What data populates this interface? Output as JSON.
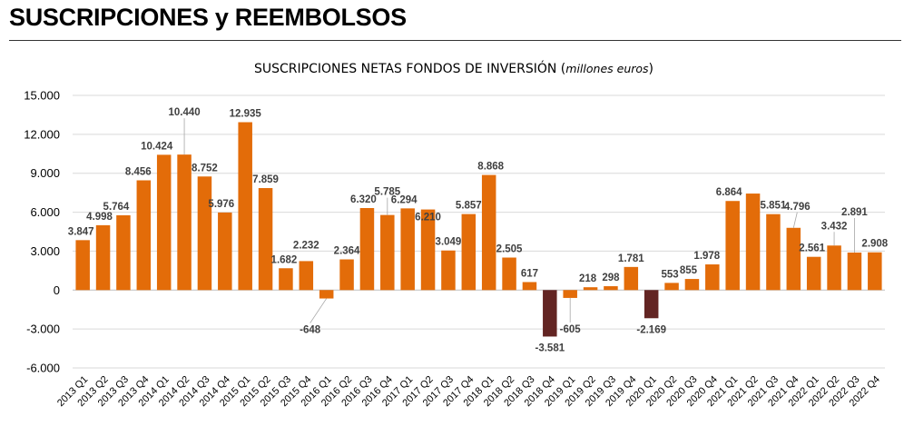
{
  "page": {
    "heading": "SUSCRIPCIONES y REEMBOLSOS"
  },
  "chart_data": {
    "type": "bar",
    "title_main": "SUSCRIPCIONES NETAS FONDOS DE INVERSIÓN (",
    "title_unit": "millones euros",
    "title_close": ")",
    "ylim": [
      -6000,
      15000
    ],
    "yticks": [
      15000,
      12000,
      9000,
      6000,
      3000,
      0,
      -3000,
      -6000
    ],
    "ytick_labels": [
      "15.000",
      "12.000",
      "9.000",
      "6.000",
      "3.000",
      "0",
      "-3.000",
      "-6.000"
    ],
    "grid": true,
    "categories": [
      "2013 Q1",
      "2013 Q2",
      "2013 Q3",
      "2013 Q4",
      "2014 Q1",
      "2014 Q2",
      "2014 Q3",
      "2014 Q4",
      "2015 Q1",
      "2015 Q2",
      "2015 Q3",
      "2015 Q4",
      "2016 Q1",
      "2016 Q2",
      "2016 Q3",
      "2016 Q4",
      "2017 Q1",
      "2017 Q2",
      "2017 Q3",
      "2017 Q4",
      "2018 Q1",
      "2018 Q2",
      "2018 Q3",
      "2018 Q4",
      "2019 Q1",
      "2019 Q2",
      "2019 Q3",
      "2019 Q4",
      "2020 Q1",
      "2020 Q2",
      "2020 Q3",
      "2020 Q4",
      "2021 Q1",
      "2021 Q2",
      "2021 Q3",
      "2021 Q4",
      "2022 Q1",
      "2022 Q2",
      "2022 Q3",
      "2022 Q4"
    ],
    "values": [
      3847,
      4998,
      5764,
      8456,
      10424,
      10440,
      8752,
      5976,
      12935,
      7859,
      1682,
      2232,
      -648,
      2364,
      6320,
      5785,
      6294,
      6210,
      3049,
      5857,
      8868,
      2505,
      617,
      -3581,
      -605,
      218,
      298,
      1781,
      -2169,
      553,
      855,
      1978,
      6864,
      7436,
      5851,
      4796,
      2561,
      3432,
      2891,
      2908
    ],
    "labels": [
      "3.847",
      "4.998",
      "5.764",
      "8.456",
      "10.424",
      "10.440",
      "8.752",
      "5.976",
      "12.935",
      "7.859",
      "1.682",
      "2.232",
      "-648",
      "2.364",
      "6.320",
      "5.785",
      "6.294",
      "6.210",
      "3.049",
      "5.857",
      "8.868",
      "2.505",
      "617",
      "-3.581",
      "-605",
      "218",
      "298",
      "1.781",
      "-2.169",
      "553",
      "855",
      "1.978",
      "6.864",
      "",
      "5.851",
      "4.796",
      "2.561",
      "3.432",
      "2.891",
      "2.908"
    ],
    "colors": {
      "positive": "#E36C09",
      "negative_highlight": "#632523",
      "grid": "#D9D9D9",
      "label": "#404040"
    },
    "highlighted_negatives": [
      "2018 Q4",
      "2020 Q1"
    ]
  }
}
